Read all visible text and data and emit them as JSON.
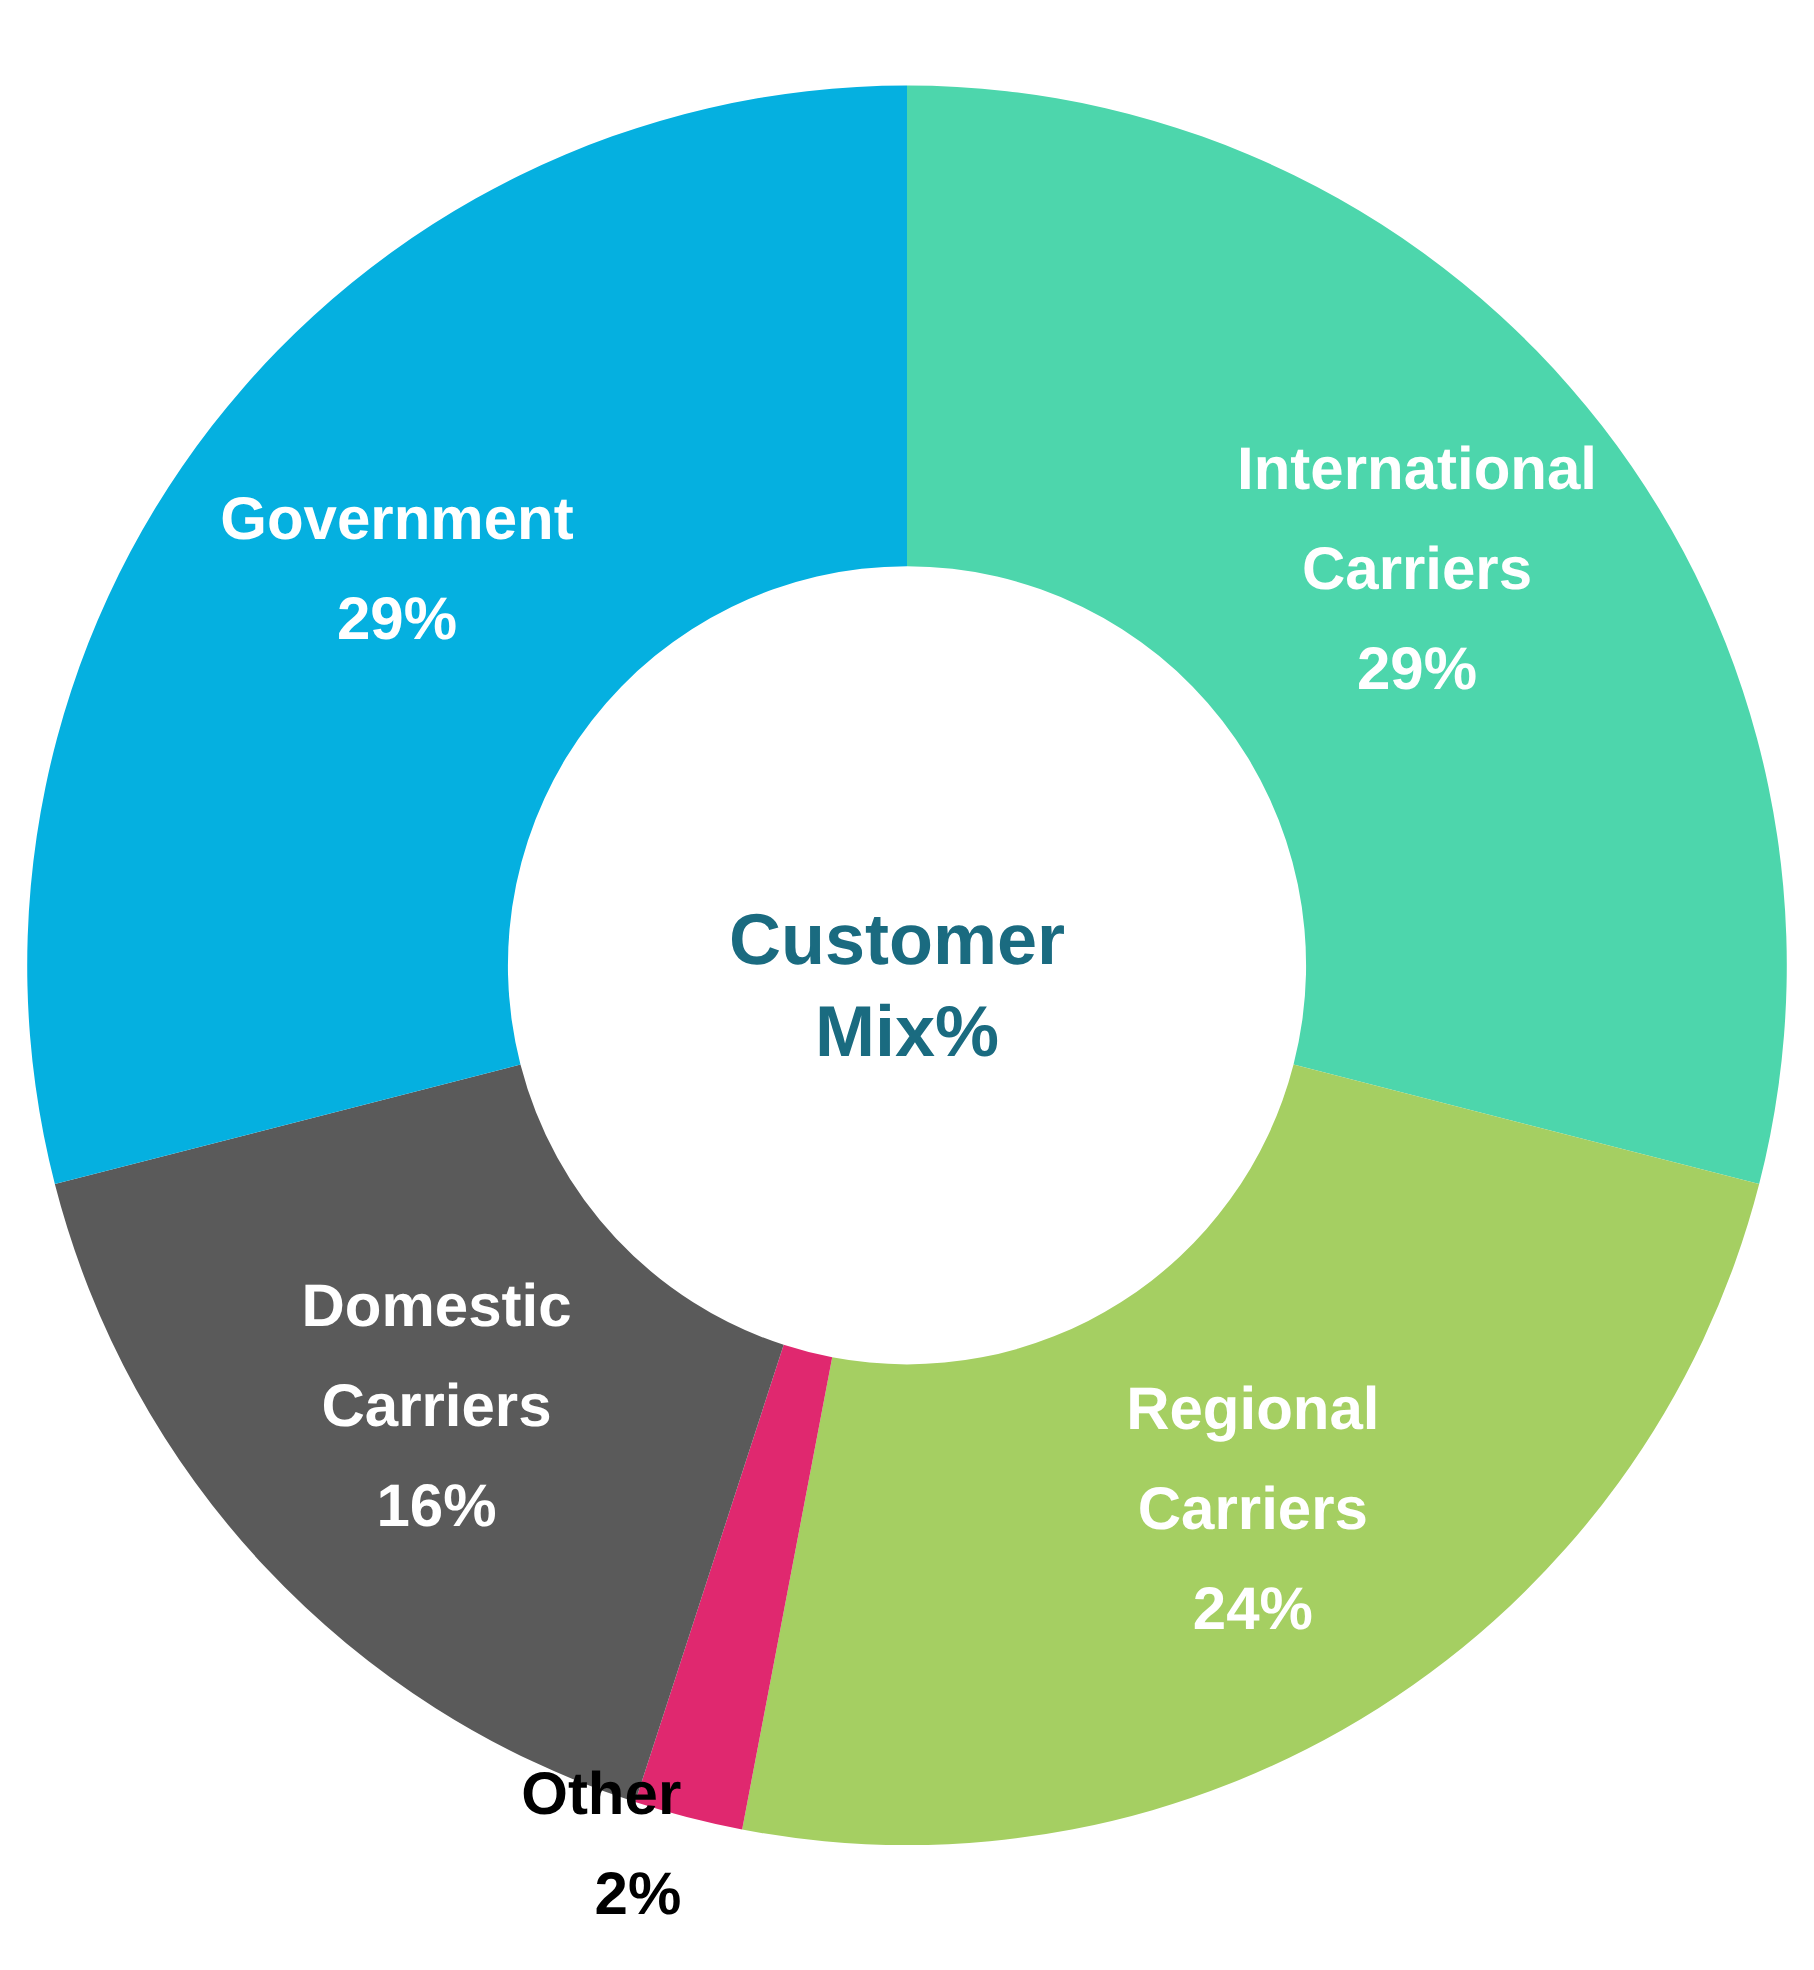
{
  "chart_data": {
    "type": "donut",
    "title": "Customer Mix%",
    "categories": [
      "International Carriers",
      "Regional Carriers",
      "Other",
      "Domestic Carriers",
      "Government"
    ],
    "values": [
      29,
      24,
      2,
      16,
      29
    ],
    "colors": [
      "#4dd6ac",
      "#a5cf62",
      "#e0286f",
      "#5a5a5a",
      "#05b0e0"
    ],
    "value_labels": [
      "29%",
      "24%",
      "2%",
      "16%",
      "29%"
    ],
    "legend": false
  }
}
